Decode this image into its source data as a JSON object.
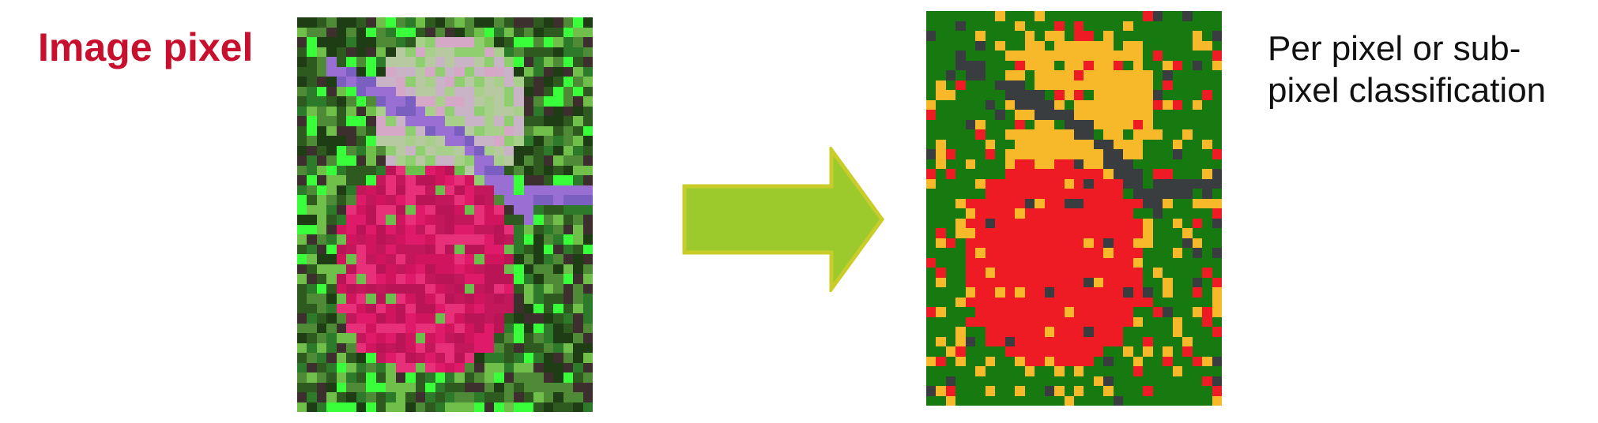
{
  "left_panel": {
    "label": "Image pixel"
  },
  "right_panel": {
    "label_lines": [
      "Per pixel or sub-",
      "pixel classification"
    ]
  },
  "colors": {
    "label_red": "#c8102e",
    "arrow_fill": "#9cca2c",
    "arrow_stroke": "#c9cd2a",
    "class_forest": "#167a10",
    "class_urban": "#f7b82a",
    "class_crop": "#ef1b24",
    "class_road": "#3a3d40"
  },
  "icons": {
    "flow_arrow": "right-arrow-icon"
  }
}
